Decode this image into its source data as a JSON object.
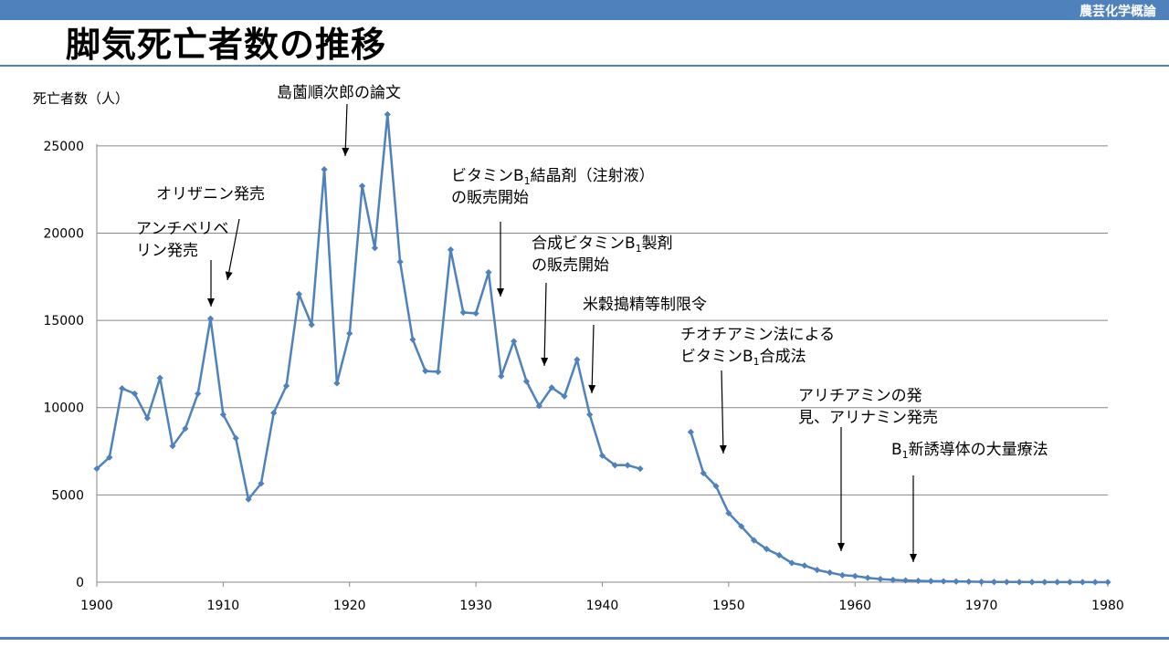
{
  "header": {
    "course": "農芸化学概論"
  },
  "slide": {
    "title": "脚気死亡者数の推移"
  },
  "colors": {
    "accent": "#4f81bd",
    "series": "#4f81bd",
    "grid": "#868686"
  },
  "chart_data": {
    "type": "line",
    "title": "脚気死亡者数の推移",
    "ylabel": "死亡者数（人）",
    "xlabel": "",
    "xlim": [
      1900,
      1980
    ],
    "ylim": [
      0,
      27500
    ],
    "xticks": [
      1900,
      1910,
      1920,
      1930,
      1940,
      1950,
      1960,
      1970,
      1980
    ],
    "yticks": [
      0,
      5000,
      10000,
      15000,
      20000,
      25000
    ],
    "grid": true,
    "legend": "none",
    "series": [
      {
        "name": "脚気死亡者数",
        "segments": [
          {
            "x": [
              1900,
              1901,
              1902,
              1903,
              1904,
              1905,
              1906,
              1907,
              1908,
              1909,
              1910,
              1911,
              1912,
              1913,
              1914,
              1915,
              1916,
              1917,
              1918,
              1919,
              1920,
              1921,
              1922,
              1923,
              1924,
              1925,
              1926,
              1927,
              1928,
              1929,
              1930,
              1931,
              1932,
              1933,
              1934,
              1935,
              1936,
              1937,
              1938,
              1939,
              1940,
              1941,
              1942,
              1943
            ],
            "y": [
              6500,
              7150,
              11100,
              10800,
              9400,
              11700,
              7800,
              8800,
              10800,
              15100,
              9600,
              8250,
              4750,
              5650,
              9700,
              11250,
              16500,
              14750,
              23650,
              11400,
              14250,
              22700,
              19150,
              26800,
              18350,
              13900,
              12100,
              12050,
              19050,
              15450,
              15400,
              17750,
              11800,
              13800,
              11500,
              10100,
              11150,
              10650,
              12750,
              9600,
              7250,
              6700,
              6700,
              6500
            ]
          },
          {
            "x": [
              1947,
              1948,
              1949,
              1950,
              1951,
              1952,
              1953,
              1954,
              1955,
              1956,
              1957,
              1958,
              1959,
              1960,
              1961,
              1962,
              1963,
              1964,
              1965,
              1966,
              1967,
              1968,
              1969,
              1970,
              1971,
              1972,
              1973,
              1974,
              1975,
              1976,
              1977,
              1978,
              1979,
              1980
            ],
            "y": [
              8600,
              6250,
              5500,
              3950,
              3200,
              2400,
              1900,
              1550,
              1100,
              950,
              700,
              550,
              400,
              350,
              250,
              180,
              130,
              100,
              80,
              60,
              50,
              40,
              30,
              20,
              15,
              10,
              8,
              5,
              5,
              5,
              3,
              3,
              2,
              2
            ]
          }
        ]
      }
    ],
    "annotations": [
      {
        "lines": [
          "アンチベリベ",
          "リン発売"
        ],
        "year": 1909,
        "value": 15100
      },
      {
        "lines": [
          "オリザニン発売"
        ],
        "year": 1910.5,
        "value": 17000
      },
      {
        "lines": [
          "島薗順次郎の論文"
        ],
        "year": 1920,
        "value": 24000
      },
      {
        "lines": [
          "ビタミンB1結晶剤（注射液）",
          "の販売開始"
        ],
        "year": 1932,
        "value": 16000
      },
      {
        "lines": [
          "合成ビタミンB1製剤",
          "の販売開始"
        ],
        "year": 1935.5,
        "value": 12000
      },
      {
        "lines": [
          "米穀搗精等制限令"
        ],
        "year": 1939.3,
        "value": 10600
      },
      {
        "lines": [
          "チオチアミン法による",
          "ビタミンB1合成法"
        ],
        "year": 1949.5,
        "value": 7300
      },
      {
        "lines": [
          "アリチアミンの発",
          "見、アリナミン発売"
        ],
        "year": 1959,
        "value": 1700
      },
      {
        "lines": [
          "B1新誘導体の大量療法"
        ],
        "year": 1964.5,
        "value": 1100
      }
    ]
  }
}
